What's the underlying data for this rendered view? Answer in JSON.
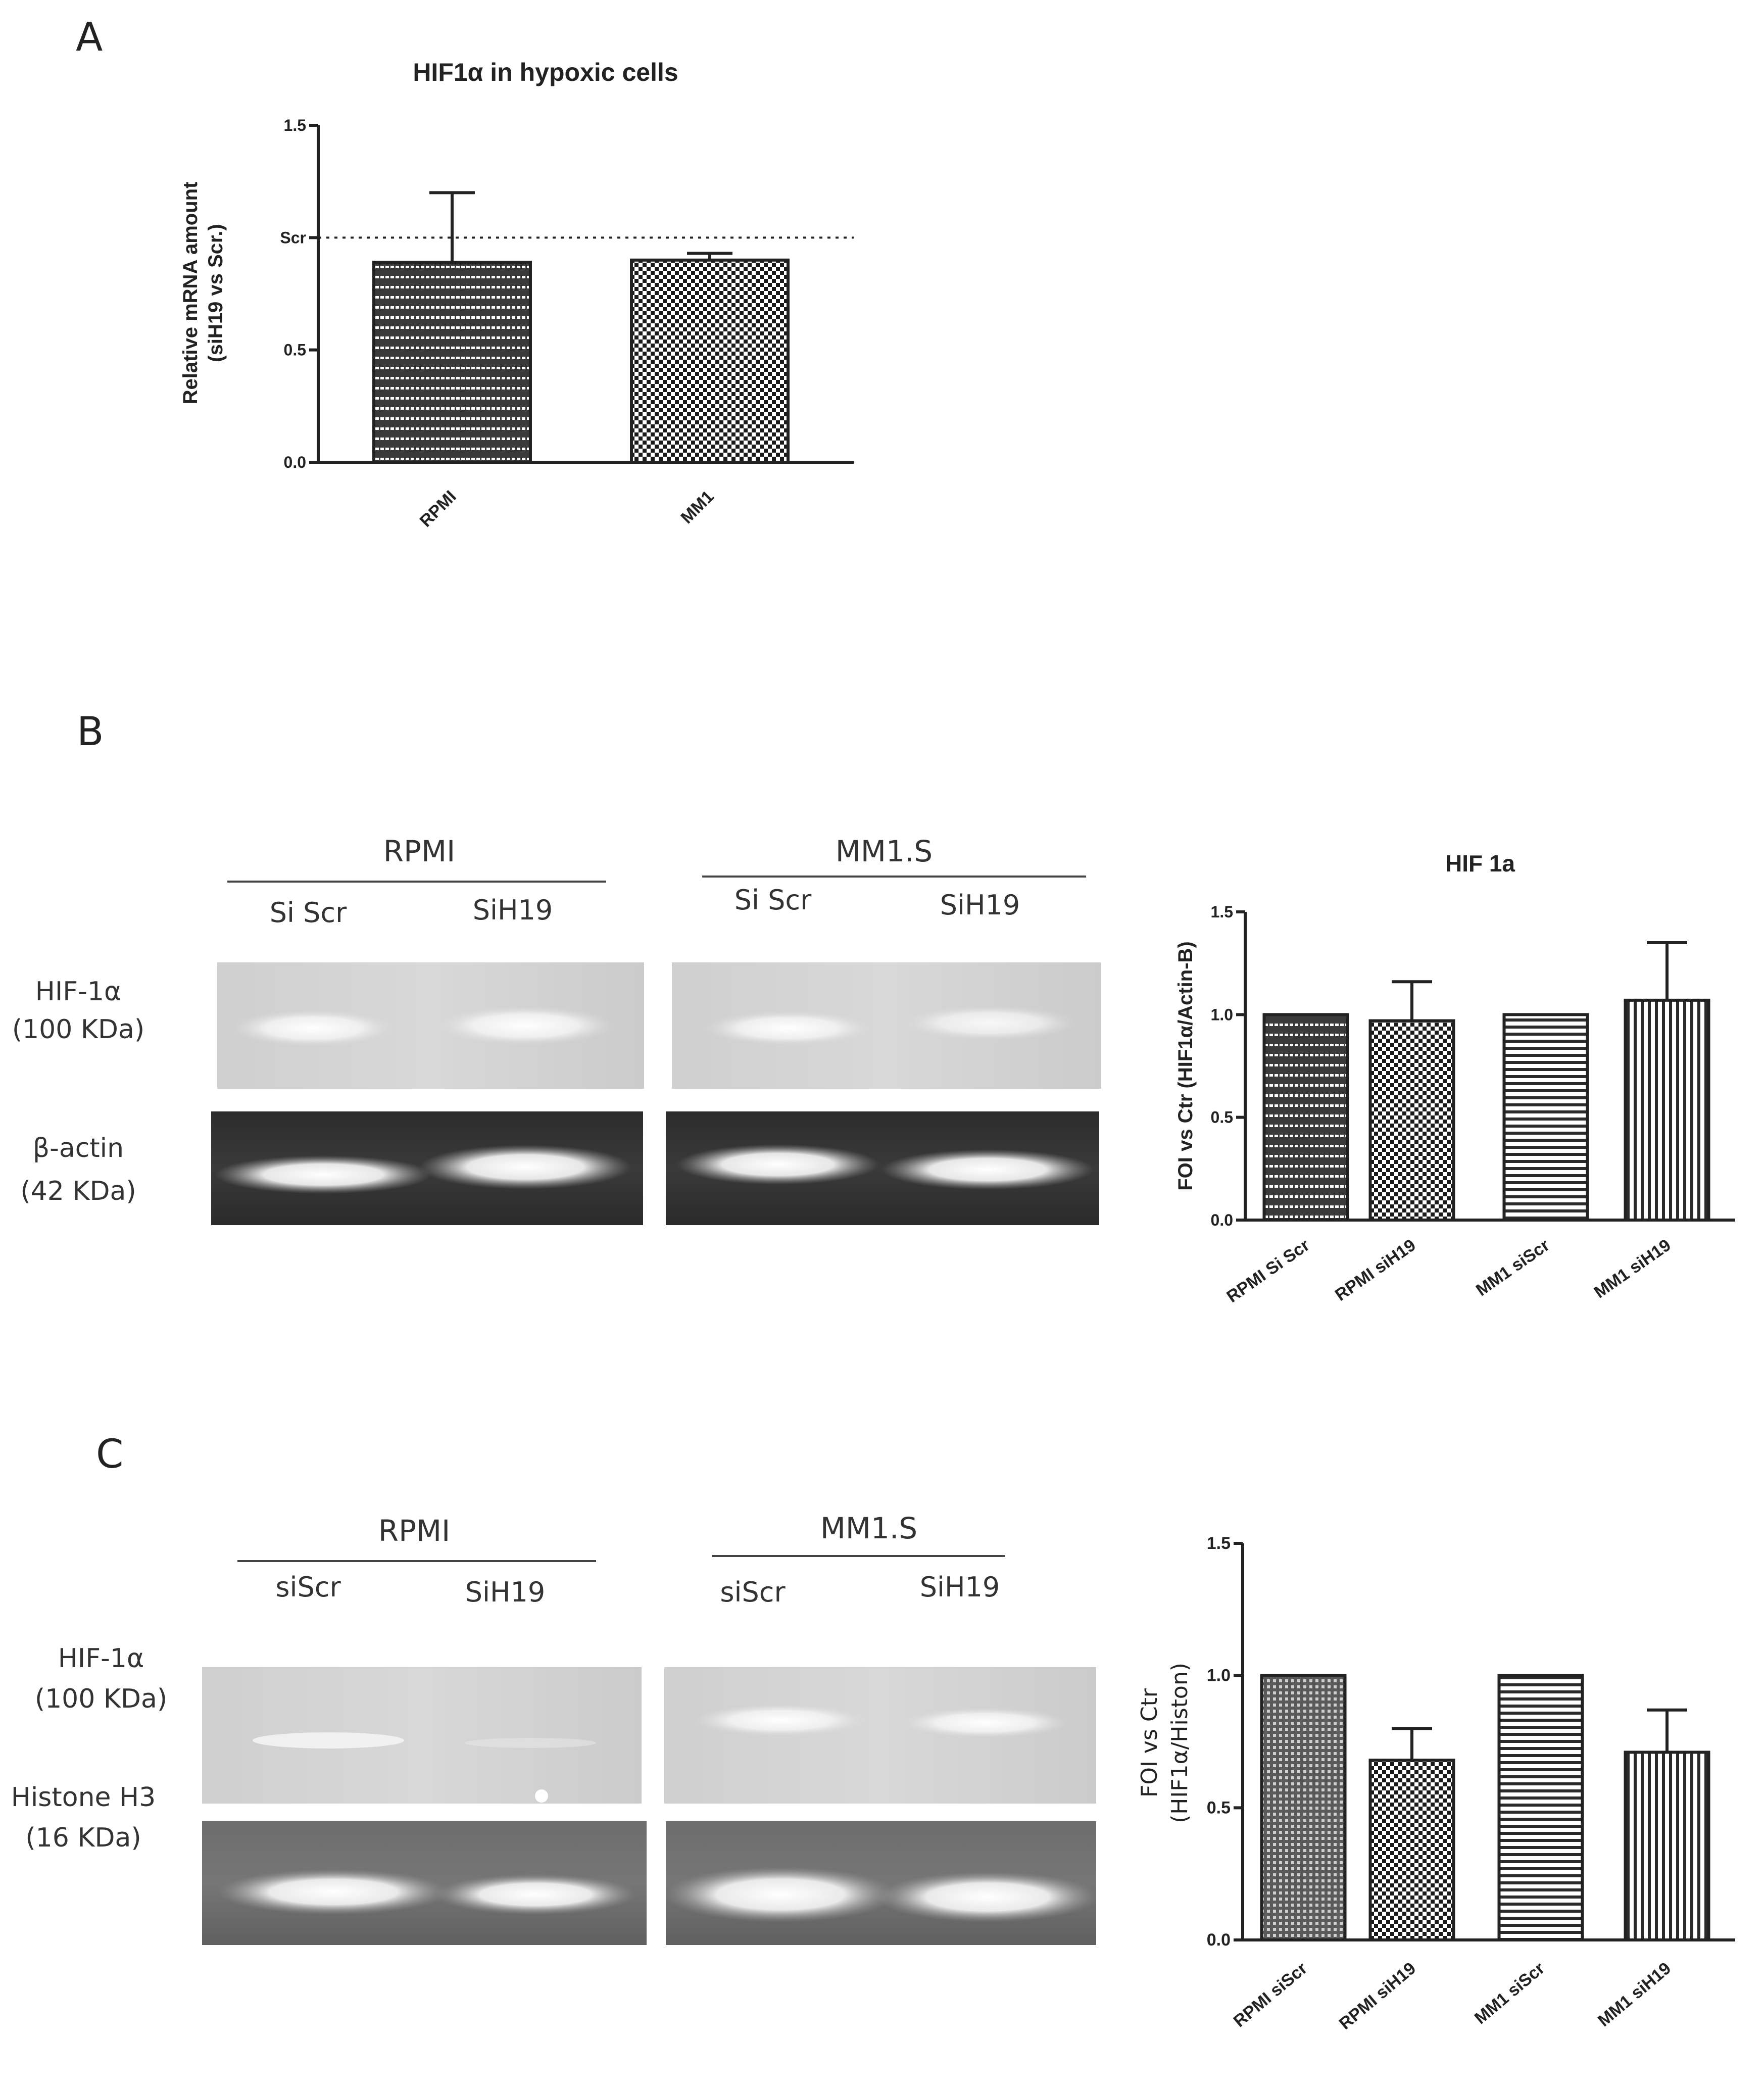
{
  "panels": {
    "a": {
      "letter": "A"
    },
    "b": {
      "letter": "B",
      "lane_groups": [
        "RPMI",
        "MM1.S"
      ],
      "lanes": [
        "Si Scr",
        "SiH19",
        "Si Scr",
        "SiH19"
      ],
      "rows": [
        {
          "name": "HIF-1α",
          "size": "(100 KDa)"
        },
        {
          "name": "β-actin",
          "size": "(42 KDa)"
        }
      ]
    },
    "c": {
      "letter": "C",
      "lane_groups": [
        "RPMI",
        "MM1.S"
      ],
      "lanes": [
        "siScr",
        "SiH19",
        "siScr",
        "SiH19"
      ],
      "rows": [
        {
          "name": "HIF-1α",
          "size": "(100 KDa)"
        },
        {
          "name": "Histone H3",
          "size": "(16 KDa)"
        }
      ]
    }
  },
  "chart_data": [
    {
      "id": "A",
      "type": "bar",
      "title": "HIF1α in hypoxic cells",
      "ylabel_lines": [
        "Relative mRNA amount",
        "(siH19 vs Scr.)"
      ],
      "categories": [
        "RPMI",
        "MM1"
      ],
      "values": [
        0.89,
        0.9
      ],
      "error_upper": [
        1.2,
        0.93
      ],
      "ylim": [
        0,
        1.5
      ],
      "yticks": [
        {
          "value": 0.0,
          "label": "0.0"
        },
        {
          "value": 0.5,
          "label": "0.5"
        },
        {
          "value": 1.0,
          "label": "Scr"
        },
        {
          "value": 1.5,
          "label": "1.5"
        }
      ],
      "reference_line": 1.0,
      "patterns": [
        "hlines",
        "checker"
      ]
    },
    {
      "id": "B",
      "type": "bar",
      "title": "HIF 1a",
      "ylabel_lines": [
        "FOI vs Ctr (HIF1α/Actin-B)"
      ],
      "categories": [
        "RPMI Si Scr",
        "RPMI siH19",
        "MM1 siScr",
        "MM1 siH19"
      ],
      "values": [
        1.0,
        0.97,
        1.0,
        1.07
      ],
      "error_upper": [
        null,
        1.16,
        null,
        1.35
      ],
      "ylim": [
        0,
        1.5
      ],
      "yticks": [
        {
          "value": 0.0,
          "label": "0.0"
        },
        {
          "value": 0.5,
          "label": "0.5"
        },
        {
          "value": 1.0,
          "label": "1.0"
        },
        {
          "value": 1.5,
          "label": "1.5"
        }
      ],
      "patterns": [
        "hlines",
        "checker",
        "stripes",
        "vstripes"
      ]
    },
    {
      "id": "C",
      "type": "bar",
      "title": "",
      "ylabel_lines": [
        "FOI vs Ctr",
        "(HIF1α/Histon)"
      ],
      "categories": [
        "RPMI siScr",
        "RPMI siH19",
        "MM1 siScr",
        "MM1 siH19"
      ],
      "values": [
        1.0,
        0.68,
        1.0,
        0.71
      ],
      "error_upper": [
        null,
        0.8,
        null,
        0.87
      ],
      "ylim": [
        0,
        1.5
      ],
      "yticks": [
        {
          "value": 0.0,
          "label": "0.0"
        },
        {
          "value": 0.5,
          "label": "0.5"
        },
        {
          "value": 1.0,
          "label": "1.0"
        },
        {
          "value": 1.5,
          "label": "1.5"
        }
      ],
      "patterns": [
        "dots",
        "checker",
        "stripes",
        "vstripes"
      ]
    }
  ]
}
